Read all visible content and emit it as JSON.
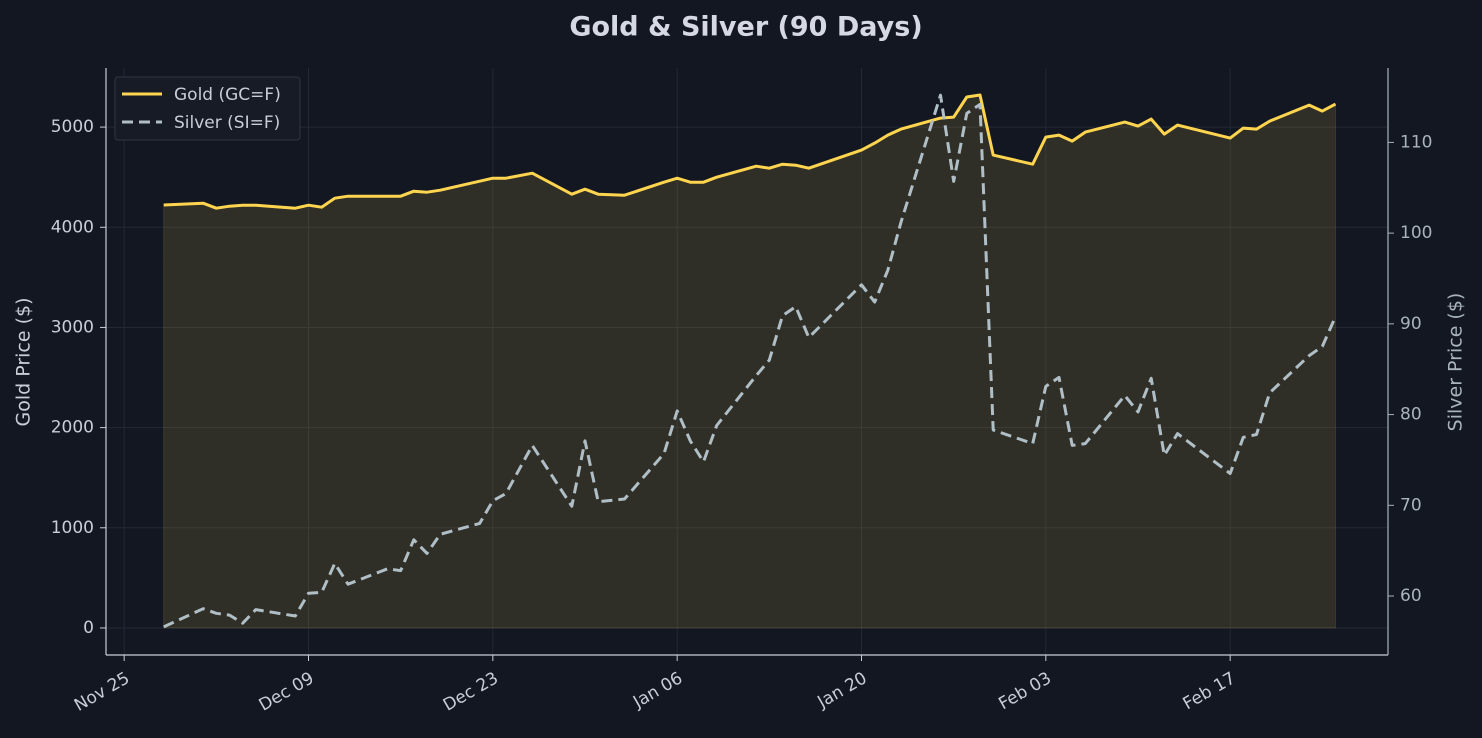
{
  "chart_data": {
    "type": "line",
    "title": "Gold & Silver (90 Days)",
    "ylabel": "Gold Price ($)",
    "y2label": "Silver Price ($)",
    "x": [
      "Nov 28",
      "Dec 01",
      "Dec 02",
      "Dec 03",
      "Dec 04",
      "Dec 05",
      "Dec 08",
      "Dec 09",
      "Dec 10",
      "Dec 11",
      "Dec 12",
      "Dec 15",
      "Dec 16",
      "Dec 17",
      "Dec 18",
      "Dec 19",
      "Dec 22",
      "Dec 23",
      "Dec 24",
      "Dec 26",
      "Dec 29",
      "Dec 30",
      "Dec 31",
      "Jan 02",
      "Jan 05",
      "Jan 06",
      "Jan 07",
      "Jan 08",
      "Jan 09",
      "Jan 12",
      "Jan 13",
      "Jan 14",
      "Jan 15",
      "Jan 16",
      "Jan 20",
      "Jan 21",
      "Jan 22",
      "Jan 23",
      "Jan 26",
      "Jan 27",
      "Jan 28",
      "Jan 29",
      "Jan 30",
      "Feb 02",
      "Feb 03",
      "Feb 04",
      "Feb 05",
      "Feb 06",
      "Feb 09",
      "Feb 10",
      "Feb 11",
      "Feb 12",
      "Feb 13",
      "Feb 17",
      "Feb 18",
      "Feb 19",
      "Feb 20",
      "Feb 23",
      "Feb 24",
      "Feb 25"
    ],
    "series": [
      {
        "name": "Gold (GC=F)",
        "color": "#ffd54f",
        "fill": true,
        "values": [
          4222,
          4240,
          4190,
          4210,
          4220,
          4220,
          4190,
          4220,
          4200,
          4290,
          4310,
          4310,
          4310,
          4360,
          4350,
          4370,
          4460,
          4490,
          4490,
          4540,
          4330,
          4380,
          4330,
          4320,
          4450,
          4490,
          4450,
          4450,
          4500,
          4610,
          4590,
          4630,
          4620,
          4590,
          4770,
          4840,
          4920,
          4980,
          5090,
          5100,
          5300,
          5320,
          4720,
          4630,
          4900,
          4920,
          4860,
          4950,
          5050,
          5010,
          5080,
          4930,
          5020,
          4890,
          4990,
          4980,
          5060,
          5220,
          5160,
          5230
        ]
      },
      {
        "name": "Silver (SI=F)",
        "color": "#b0bec5",
        "dashed": true,
        "axis": "y2",
        "values": [
          56.6,
          58.6,
          58.1,
          57.9,
          57.0,
          58.5,
          57.8,
          60.3,
          60.4,
          63.6,
          61.3,
          63.0,
          62.8,
          66.2,
          64.7,
          66.8,
          68.0,
          70.5,
          71.3,
          76.6,
          69.9,
          77.1,
          70.4,
          70.7,
          75.7,
          80.4,
          77.1,
          74.8,
          78.8,
          84.3,
          86.0,
          90.9,
          91.9,
          88.5,
          94.3,
          92.4,
          95.9,
          101.2,
          115.2,
          105.7,
          113.2,
          114.2,
          78.3,
          76.8,
          83.1,
          84.1,
          76.6,
          76.8,
          82.1,
          80.3,
          84.0,
          75.5,
          77.9,
          73.5,
          77.5,
          77.8,
          82.4,
          86.5,
          87.5,
          90.8
        ]
      }
    ],
    "xlim": [
      "Nov 24",
      "Feb 28"
    ],
    "xticks": [
      "Nov 25",
      "Dec 09",
      "Dec 23",
      "Jan 06",
      "Jan 20",
      "Feb 03",
      "Feb 17"
    ],
    "ylim": [
      -270,
      5590
    ],
    "yticks": [
      0,
      1000,
      2000,
      3000,
      4000,
      5000
    ],
    "y2lim": [
      53.5,
      118.2
    ],
    "y2ticks": [
      60,
      70,
      80,
      90,
      100,
      110
    ],
    "grid": true,
    "legend": "upper-left"
  }
}
